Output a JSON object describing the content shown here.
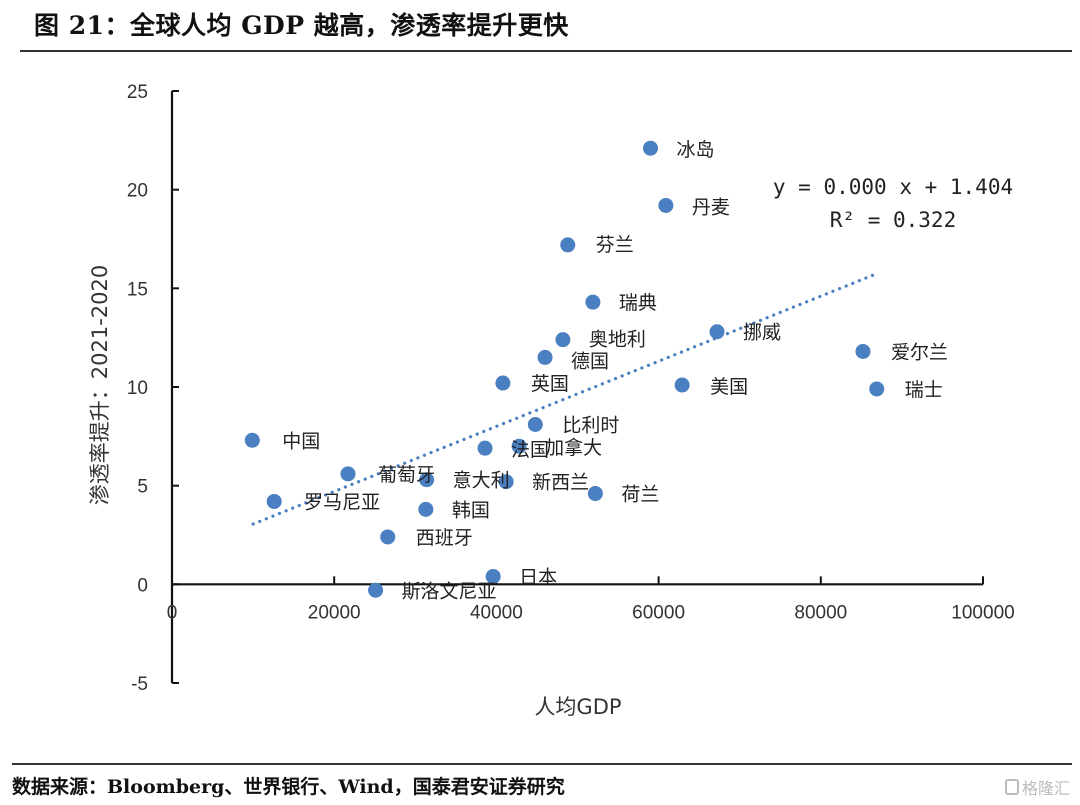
{
  "header": {
    "title": "图 21：全球人均 GDP 越高，渗透率提升更快"
  },
  "footer": {
    "source": "数据来源：Bloomberg、世界银行、Wind，国泰君安证券研究",
    "watermark": "格隆汇"
  },
  "colors": {
    "point": "#4a7fc1",
    "trendline": "#4a7fc1",
    "axis": "#111111"
  },
  "chart_data": {
    "type": "scatter",
    "title": "",
    "xlabel": "人均GDP",
    "ylabel": "渗透率提升：2021-2020",
    "xlim": [
      0,
      100000
    ],
    "ylim": [
      -5,
      25
    ],
    "x_ticks": [
      0,
      20000,
      40000,
      60000,
      80000,
      100000
    ],
    "x_tick_labels": [
      "0",
      "20000",
      "40000",
      "60000",
      "80000",
      "100000"
    ],
    "y_ticks": [
      -5,
      0,
      5,
      10,
      15,
      20,
      25
    ],
    "y_tick_labels": [
      "-5",
      "0",
      "5",
      "10",
      "15",
      "20",
      "25"
    ],
    "grid": false,
    "legend": "none",
    "points": [
      {
        "label": "冰岛",
        "x": 59000,
        "y": 22.1
      },
      {
        "label": "丹麦",
        "x": 60900,
        "y": 19.2
      },
      {
        "label": "芬兰",
        "x": 48800,
        "y": 17.2
      },
      {
        "label": "瑞典",
        "x": 51900,
        "y": 14.3
      },
      {
        "label": "挪威",
        "x": 67200,
        "y": 12.8
      },
      {
        "label": "奥地利",
        "x": 48200,
        "y": 12.4
      },
      {
        "label": "德国",
        "x": 46000,
        "y": 11.5
      },
      {
        "label": "英国",
        "x": 40800,
        "y": 10.2
      },
      {
        "label": "美国",
        "x": 62900,
        "y": 10.1
      },
      {
        "label": "爱尔兰",
        "x": 85200,
        "y": 11.8
      },
      {
        "label": "瑞士",
        "x": 86900,
        "y": 9.9
      },
      {
        "label": "中国",
        "x": 9900,
        "y": 7.3
      },
      {
        "label": "比利时",
        "x": 44800,
        "y": 8.1
      },
      {
        "label": "法国",
        "x": 38600,
        "y": 6.9
      },
      {
        "label": "加拿大",
        "x": 42800,
        "y": 7.0
      },
      {
        "label": "葡萄牙",
        "x": 21700,
        "y": 5.6
      },
      {
        "label": "意大利",
        "x": 31400,
        "y": 5.3
      },
      {
        "label": "新西兰",
        "x": 41200,
        "y": 5.2
      },
      {
        "label": "荷兰",
        "x": 52200,
        "y": 4.6
      },
      {
        "label": "罗马尼亚",
        "x": 12600,
        "y": 4.2
      },
      {
        "label": "韩国",
        "x": 31300,
        "y": 3.8
      },
      {
        "label": "西班牙",
        "x": 26600,
        "y": 2.4
      },
      {
        "label": "日本",
        "x": 39600,
        "y": 0.4
      },
      {
        "label": "斯洛文尼亚",
        "x": 25100,
        "y": -0.3
      }
    ],
    "trendline": {
      "type": "linear",
      "style": "dotted",
      "x_range": [
        10000,
        87000
      ],
      "slope": 0.000165,
      "intercept": 1.404,
      "equation_text": "y = 0.000 x + 1.404",
      "r2_text": "R² = 0.322"
    }
  }
}
